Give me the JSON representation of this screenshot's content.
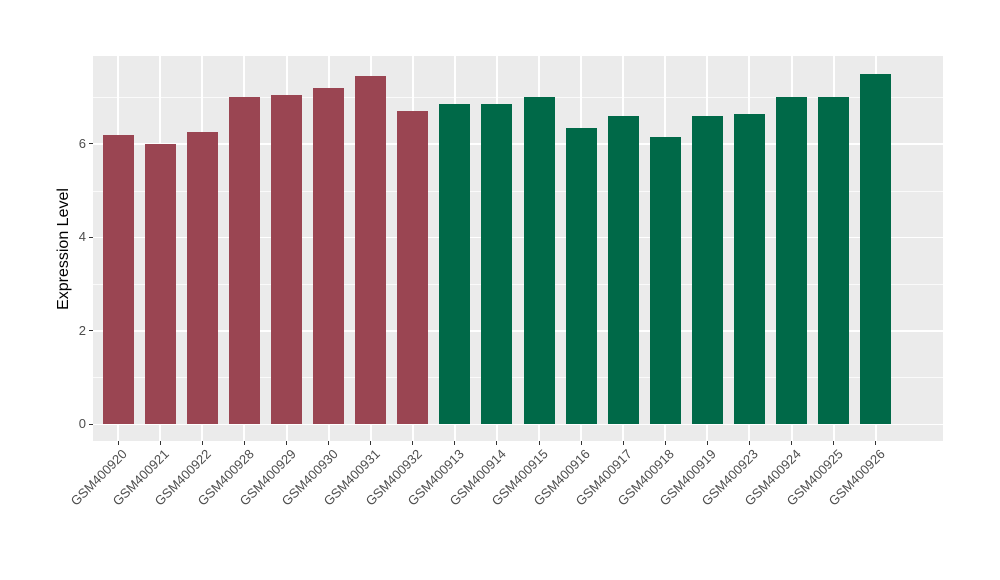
{
  "figure": {
    "background": "#FFFFFF",
    "panel_background": "#EBEBEB",
    "gridline_color": "#FFFFFF",
    "axis_text_color": "#4D4D4D",
    "axis_title_color": "#000000",
    "tick_mark_color": "#333333"
  },
  "chart_data": {
    "type": "bar",
    "title": "",
    "xlabel": "",
    "ylabel": "Expression Level",
    "ylim": [
      -0.36,
      7.88
    ],
    "yticks": [
      0,
      2,
      4,
      6
    ],
    "yminor_gridlines": [
      1,
      3,
      5,
      7
    ],
    "grid": true,
    "legend_position": "none",
    "x_label_rotation_deg": 45,
    "group_colors": {
      "group1": "#9A4552",
      "group2": "#006948"
    },
    "categories": [
      "GSM400920",
      "GSM400921",
      "GSM400922",
      "GSM400928",
      "GSM400929",
      "GSM400930",
      "GSM400931",
      "GSM400932",
      "GSM400913",
      "GSM400914",
      "GSM400915",
      "GSM400916",
      "GSM400917",
      "GSM400918",
      "GSM400919",
      "GSM400923",
      "GSM400924",
      "GSM400925",
      "GSM400926"
    ],
    "values": [
      6.2,
      6.0,
      6.25,
      7.0,
      7.05,
      7.2,
      7.45,
      6.7,
      6.85,
      6.85,
      7.0,
      6.35,
      6.6,
      6.15,
      6.6,
      6.65,
      7.0,
      7.0,
      7.5
    ],
    "bar_groups": [
      "group1",
      "group1",
      "group1",
      "group1",
      "group1",
      "group1",
      "group1",
      "group1",
      "group2",
      "group2",
      "group2",
      "group2",
      "group2",
      "group2",
      "group2",
      "group2",
      "group2",
      "group2",
      "group2"
    ]
  }
}
